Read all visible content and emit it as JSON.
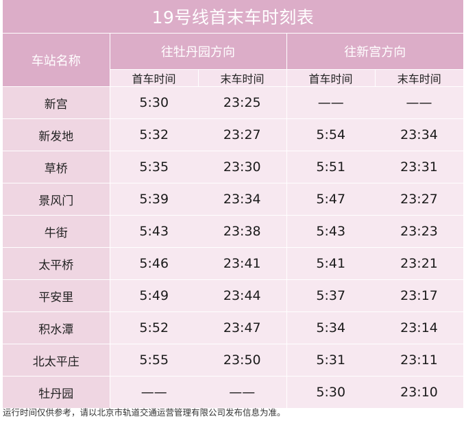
{
  "title": "19号线首末车时刻表",
  "headers": {
    "station": "车站名称",
    "direction1": "往牡丹园方向",
    "direction2": "往新宫方向",
    "first": "首车时间",
    "last": "末车时间"
  },
  "rows": [
    {
      "station": "新宫",
      "d1_first": "5:30",
      "d1_last": "23:25",
      "d2_first": "——",
      "d2_last": "——"
    },
    {
      "station": "新发地",
      "d1_first": "5:32",
      "d1_last": "23:27",
      "d2_first": "5:54",
      "d2_last": "23:34"
    },
    {
      "station": "草桥",
      "d1_first": "5:35",
      "d1_last": "23:30",
      "d2_first": "5:51",
      "d2_last": "23:31"
    },
    {
      "station": "景风门",
      "d1_first": "5:39",
      "d1_last": "23:34",
      "d2_first": "5:47",
      "d2_last": "23:27"
    },
    {
      "station": "牛街",
      "d1_first": "5:43",
      "d1_last": "23:38",
      "d2_first": "5:43",
      "d2_last": "23:23"
    },
    {
      "station": "太平桥",
      "d1_first": "5:46",
      "d1_last": "23:41",
      "d2_first": "5:41",
      "d2_last": "23:21"
    },
    {
      "station": "平安里",
      "d1_first": "5:49",
      "d1_last": "23:44",
      "d2_first": "5:37",
      "d2_last": "23:17"
    },
    {
      "station": "积水潭",
      "d1_first": "5:52",
      "d1_last": "23:47",
      "d2_first": "5:34",
      "d2_last": "23:14"
    },
    {
      "station": "北太平庄",
      "d1_first": "5:55",
      "d1_last": "23:50",
      "d2_first": "5:31",
      "d2_last": "23:11"
    },
    {
      "station": "牡丹园",
      "d1_first": "——",
      "d1_last": "——",
      "d2_first": "5:30",
      "d2_last": "23:10"
    }
  ],
  "note": "运行时间仅供参考，请以北京市轨道交通运营管理有限公司发布信息为准。",
  "colors": {
    "header_bg": "#dcadc8",
    "subheader_bg": "#f6e4ee",
    "station_bg": "#efd6e2",
    "cell_bg": "#f7e8f0"
  }
}
